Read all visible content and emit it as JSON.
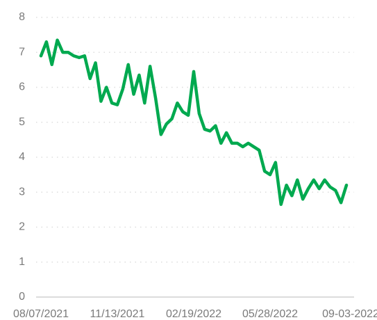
{
  "chart_data": {
    "type": "line",
    "categories": [
      "08/07/2021",
      null,
      null,
      null,
      null,
      null,
      null,
      null,
      null,
      null,
      null,
      null,
      null,
      null,
      "11/13/2021",
      null,
      null,
      null,
      null,
      null,
      null,
      null,
      null,
      null,
      null,
      null,
      null,
      null,
      "02/19/2022",
      null,
      null,
      null,
      null,
      null,
      null,
      null,
      null,
      null,
      null,
      null,
      null,
      null,
      "05/28/2022",
      null,
      null,
      null,
      null,
      null,
      null,
      null,
      null,
      null,
      null,
      null,
      null,
      null,
      "09-03-2022"
    ],
    "series": [
      {
        "color": "#00a94f",
        "values": [
          6.9,
          7.3,
          6.65,
          7.35,
          7.0,
          7.0,
          6.9,
          6.85,
          6.9,
          6.25,
          6.7,
          5.6,
          6.0,
          5.55,
          5.5,
          5.95,
          6.65,
          5.8,
          6.35,
          5.55,
          6.6,
          5.7,
          4.65,
          4.95,
          5.1,
          5.55,
          5.3,
          5.2,
          6.45,
          5.25,
          4.8,
          4.75,
          4.9,
          4.4,
          4.7,
          4.4,
          4.4,
          4.3,
          4.4,
          4.3,
          4.2,
          3.6,
          3.5,
          3.85,
          2.65,
          3.2,
          2.9,
          3.35,
          2.8,
          3.1,
          3.35,
          3.1,
          3.35,
          3.15,
          3.05,
          2.7,
          3.2
        ]
      }
    ],
    "ylim": [
      0,
      8
    ],
    "yticks": [
      0,
      1,
      2,
      3,
      4,
      5,
      6,
      7,
      8
    ],
    "grid": true
  }
}
